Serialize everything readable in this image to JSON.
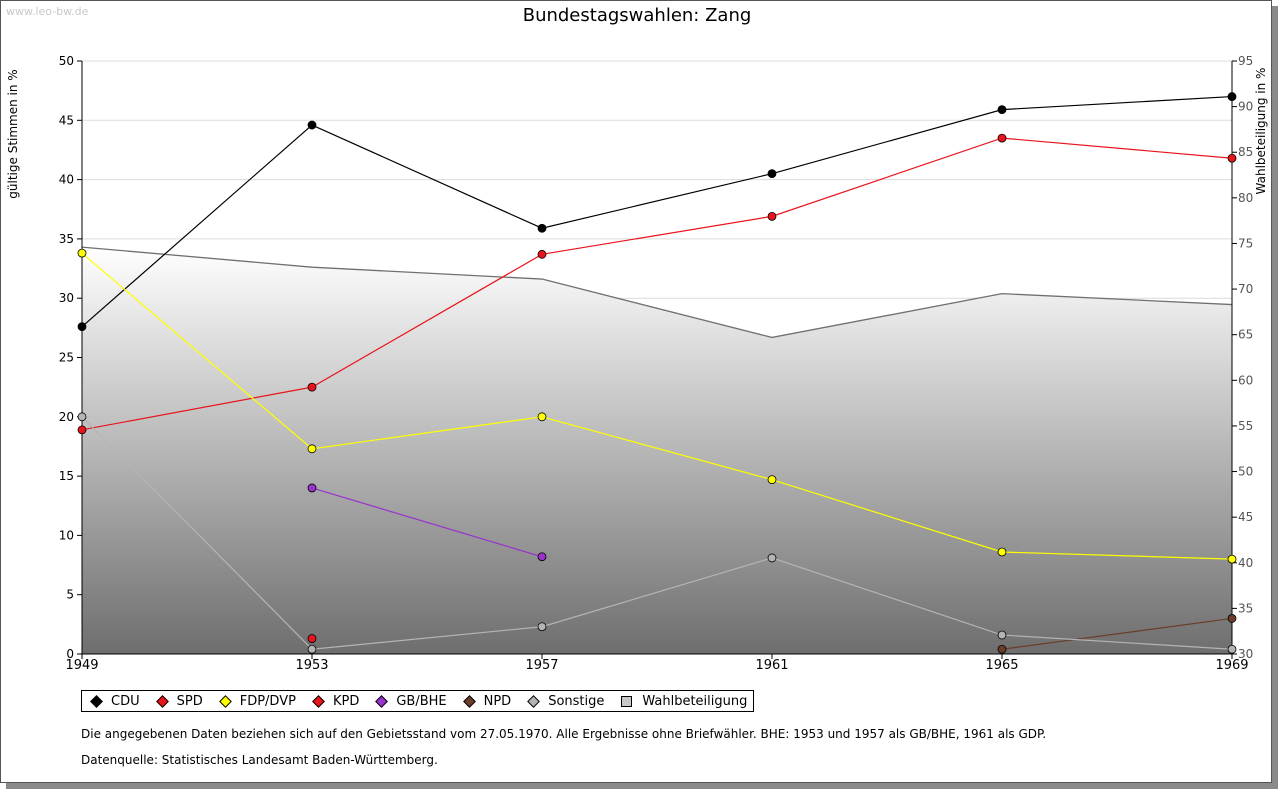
{
  "watermark": "www.leo-bw.de",
  "notes": {
    "line1": "Die angegebenen Daten beziehen sich auf den Gebietsstand vom 27.05.1970. Alle Ergebnisse ohne Briefwähler. BHE: 1953 und 1957 als GB/BHE, 1961 als GDP.",
    "line2": "Datenquelle: Statistisches Landesamt Baden-Württemberg."
  },
  "chart_data": {
    "type": "line",
    "title": "Bundestagswahlen: Zang",
    "ylabel": "gültige Stimmen in %",
    "y2label": "Wahlbeteiligung in %",
    "xlabel": "",
    "x": [
      1949,
      1953,
      1957,
      1961,
      1965,
      1969
    ],
    "ylim": [
      0,
      50
    ],
    "y2lim": [
      30,
      95
    ],
    "yticks": [
      0,
      5,
      10,
      15,
      20,
      25,
      30,
      35,
      40,
      45,
      50
    ],
    "y2ticks": [
      30,
      35,
      40,
      45,
      50,
      55,
      60,
      65,
      70,
      75,
      80,
      85,
      90,
      95
    ],
    "grid": true,
    "legend_position": "bottom",
    "series": [
      {
        "name": "CDU",
        "color": "#000000",
        "values": [
          27.6,
          44.6,
          35.9,
          40.5,
          45.9,
          47.0
        ]
      },
      {
        "name": "SPD",
        "color": "#e8141c",
        "values": [
          18.9,
          22.5,
          33.7,
          36.9,
          43.5,
          41.8
        ]
      },
      {
        "name": "FDP/DVP",
        "color": "#ffff00",
        "values": [
          33.8,
          17.3,
          20.0,
          14.7,
          8.6,
          8.0
        ]
      },
      {
        "name": "KPD",
        "color": "#e8141c",
        "values": [
          null,
          1.3,
          null,
          null,
          null,
          null
        ]
      },
      {
        "name": "GB/BHE",
        "color": "#9933cc",
        "values": [
          null,
          14.0,
          8.2,
          null,
          null,
          null
        ]
      },
      {
        "name": "NPD",
        "color": "#6b3d2a",
        "values": [
          null,
          null,
          null,
          null,
          0.4,
          3.0
        ]
      },
      {
        "name": "Sonstige",
        "color": "#b4b4b4",
        "values": [
          20.0,
          0.4,
          2.3,
          8.1,
          1.6,
          0.4
        ]
      }
    ],
    "area_series": {
      "name": "Wahlbeteiligung",
      "axis": "right",
      "color": "#c8c8c8",
      "values": [
        74.6,
        72.4,
        71.1,
        64.7,
        69.5,
        68.3
      ]
    }
  }
}
